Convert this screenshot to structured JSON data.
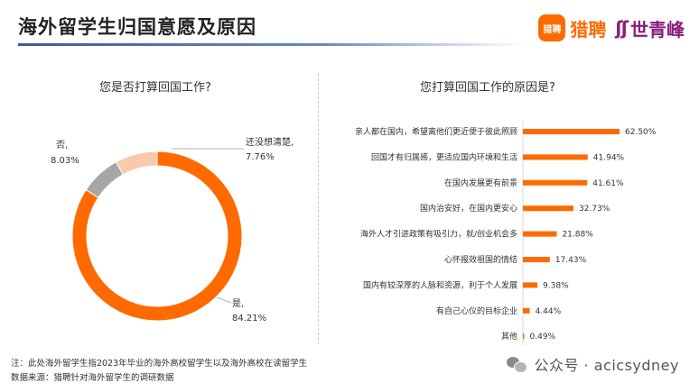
{
  "header": {
    "title": "海外留学生归国意愿及原因",
    "logo_icon_text": "猎聘",
    "logo1": "猎聘",
    "logo2_mark": "ʃʃ",
    "logo2": "世青峰"
  },
  "colors": {
    "accent": "#ff6a00",
    "light": "#f9c9ad",
    "gray": "#a6a6a6",
    "title_rule": "#3c5aa8"
  },
  "chart_data": [
    {
      "type": "pie",
      "title": "您是否打算回国工作?",
      "donut": true,
      "slices": [
        {
          "label": "是,",
          "value": 84.21,
          "value_label": "84.21%",
          "color": "#ff6a00"
        },
        {
          "label": "否,",
          "value": 8.03,
          "value_label": "8.03%",
          "color": "#f9c9ad"
        },
        {
          "label": "还没想清楚,",
          "value": 7.76,
          "value_label": "7.76%",
          "color": "#a6a6a6"
        }
      ]
    },
    {
      "type": "bar",
      "orientation": "horizontal",
      "title": "您打算回国工作的原因是?",
      "color": "#ff6a00",
      "xlim": [
        0,
        62.5
      ],
      "categories": [
        "亲人都在国内，希望离他们更近便于彼此照顾",
        "回国才有归属感，更适应国内环境和生活",
        "在国内发展更有前景",
        "国内治安好，在国内更安心",
        "海外人才引进政策有吸引力，就/创业机会多",
        "心怀报效祖国的情结",
        "国内有较深厚的人脉和资源，利于个人发展",
        "有自己心仪的目标企业",
        "其他"
      ],
      "values": [
        62.5,
        41.94,
        41.61,
        32.73,
        21.88,
        17.43,
        9.38,
        4.44,
        0.49
      ],
      "value_labels": [
        "62.50%",
        "41.94%",
        "41.61%",
        "32.73%",
        "21.88%",
        "17.43%",
        "9.38%",
        "4.44%",
        "0.49%"
      ]
    }
  ],
  "notes": {
    "note": "注：此处海外留学生指2023年毕业的海外高校留学生以及海外高校在读留学生",
    "source": "数据来源：猎聘针对海外留学生的调研数据"
  },
  "watermark": {
    "text": "公众号 · acicsydney",
    "icon": "wechat-icon"
  }
}
